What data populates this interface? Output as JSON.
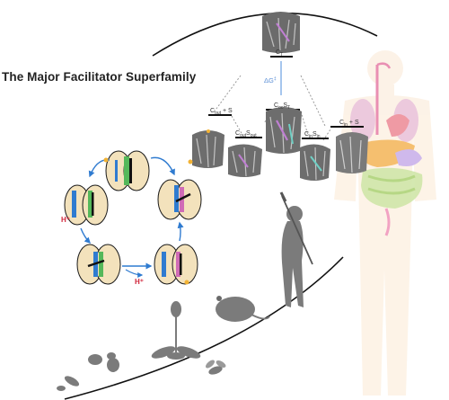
{
  "title": "The Major Facilitator Superfamily",
  "energy_diagram": {
    "state_top": "C",
    "state_top_sub": "T",
    "delta_g": "ΔG",
    "delta_g_sup": "‡",
    "states": [
      {
        "id": "cout_s",
        "main": "C",
        "sub": "out",
        "suffix": " + S"
      },
      {
        "id": "cout_sout",
        "main": "C",
        "sub": "out",
        "mid": "S",
        "sub2": "out"
      },
      {
        "id": "coc_s",
        "main": "C",
        "sub": "oc",
        "mid": "S",
        "sub2": "T"
      },
      {
        "id": "cin_sin",
        "main": "C",
        "sub": "in",
        "mid": "S",
        "sub2": "in"
      },
      {
        "id": "cin_s",
        "main": "C",
        "sub": "in",
        "suffix": " + S"
      }
    ]
  },
  "cycle": {
    "proton_labels": [
      "H⁺",
      "H⁺"
    ]
  },
  "colors": {
    "outline": "#1a1a1a",
    "arrow_blue": "#2f7bd0",
    "proton_red": "#d0243a",
    "membrane_tan": "#f3e2bc",
    "body_cream": "#fbeede",
    "silhouette": "#7b7b7b"
  }
}
